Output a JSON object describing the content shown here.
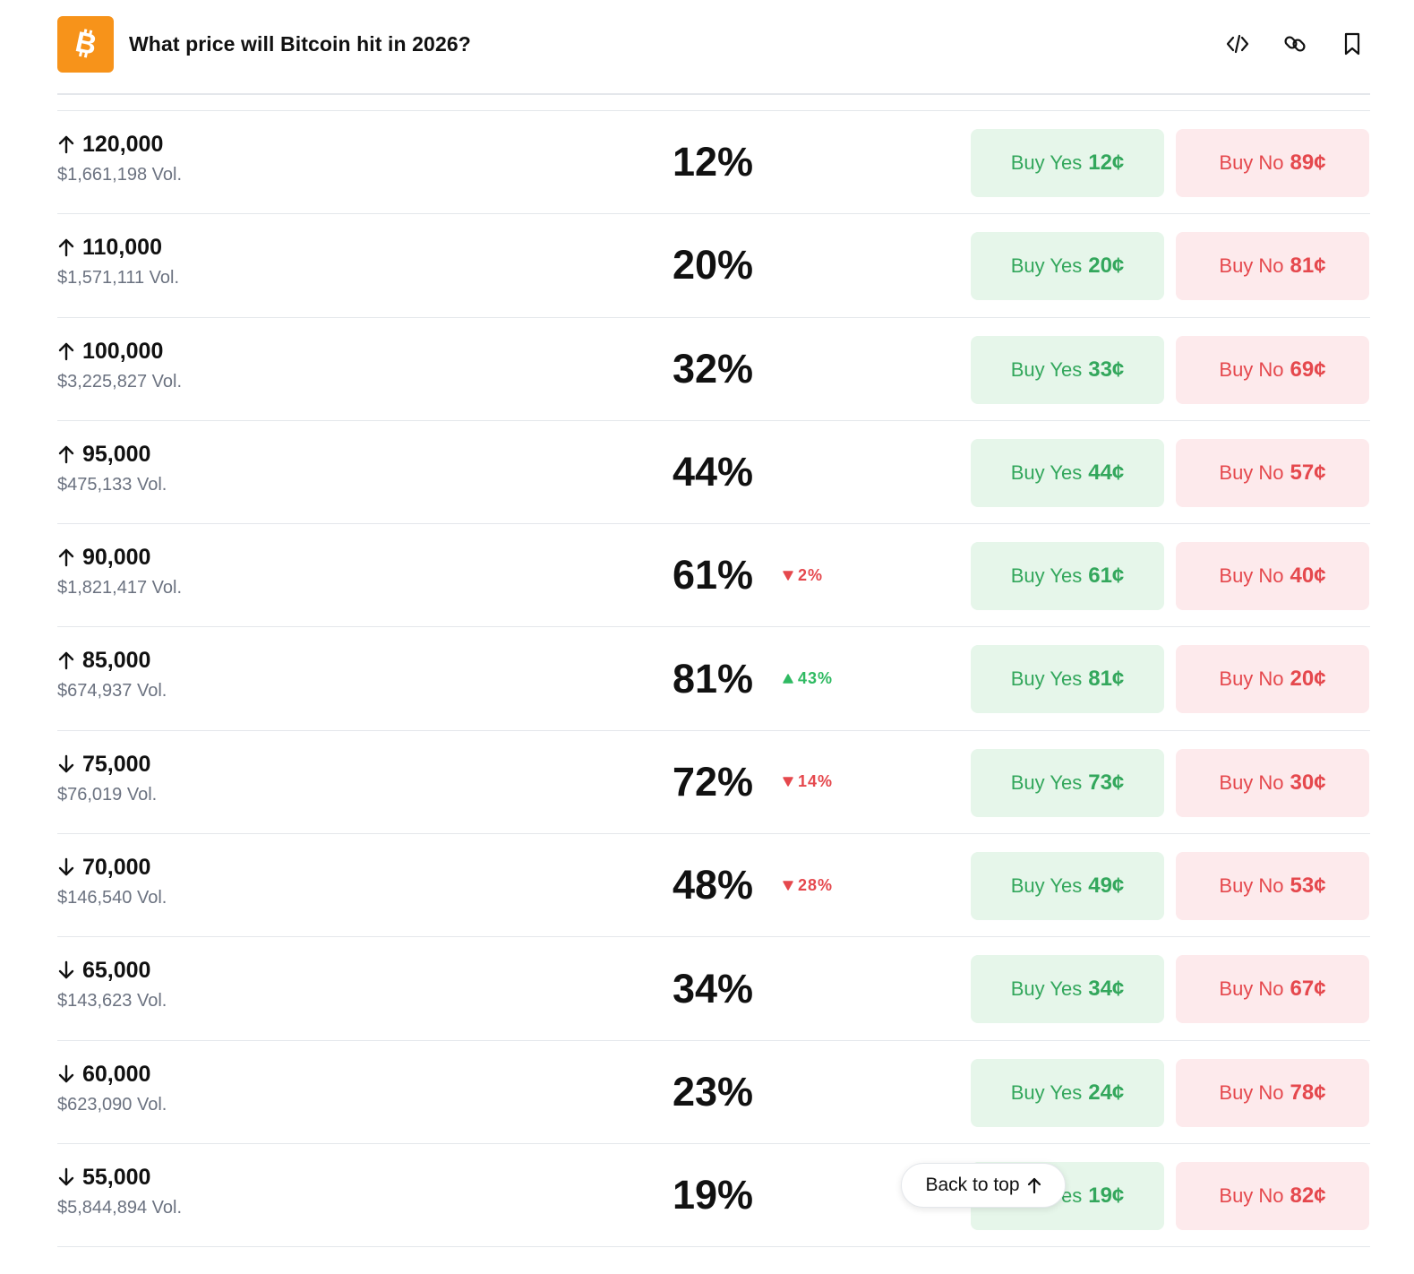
{
  "header": {
    "title": "What price will Bitcoin hit in 2026?",
    "logo_icon": "bitcoin-icon",
    "logo_color": "#f7931a",
    "actions": [
      {
        "name": "embed-button",
        "icon": "code-icon"
      },
      {
        "name": "copy-link-button",
        "icon": "link-icon"
      },
      {
        "name": "bookmark-button",
        "icon": "bookmark-icon"
      }
    ]
  },
  "colors": {
    "yes_text": "#33a75c",
    "yes_bg": "#e6f6ea",
    "no_text": "#e5484d",
    "no_bg": "#fdeaec"
  },
  "labels": {
    "buy_yes": "Buy Yes",
    "buy_no": "Buy No"
  },
  "markets": [
    {
      "direction": "up",
      "level": "120,000",
      "volume": "$1,661,198 Vol.",
      "chance": "12%",
      "delta": null,
      "yes_price": "12¢",
      "no_price": "89¢"
    },
    {
      "direction": "up",
      "level": "110,000",
      "volume": "$1,571,111 Vol.",
      "chance": "20%",
      "delta": null,
      "yes_price": "20¢",
      "no_price": "81¢"
    },
    {
      "direction": "up",
      "level": "100,000",
      "volume": "$3,225,827 Vol.",
      "chance": "32%",
      "delta": null,
      "yes_price": "33¢",
      "no_price": "69¢"
    },
    {
      "direction": "up",
      "level": "95,000",
      "volume": "$475,133 Vol.",
      "chance": "44%",
      "delta": null,
      "yes_price": "44¢",
      "no_price": "57¢"
    },
    {
      "direction": "up",
      "level": "90,000",
      "volume": "$1,821,417 Vol.",
      "chance": "61%",
      "delta": {
        "dir": "down",
        "value": "2%"
      },
      "yes_price": "61¢",
      "no_price": "40¢"
    },
    {
      "direction": "up",
      "level": "85,000",
      "volume": "$674,937 Vol.",
      "chance": "81%",
      "delta": {
        "dir": "up",
        "value": "43%"
      },
      "yes_price": "81¢",
      "no_price": "20¢"
    },
    {
      "direction": "down",
      "level": "75,000",
      "volume": "$76,019 Vol.",
      "chance": "72%",
      "delta": {
        "dir": "down",
        "value": "14%"
      },
      "yes_price": "73¢",
      "no_price": "30¢"
    },
    {
      "direction": "down",
      "level": "70,000",
      "volume": "$146,540 Vol.",
      "chance": "48%",
      "delta": {
        "dir": "down",
        "value": "28%"
      },
      "yes_price": "49¢",
      "no_price": "53¢"
    },
    {
      "direction": "down",
      "level": "65,000",
      "volume": "$143,623 Vol.",
      "chance": "34%",
      "delta": null,
      "yes_price": "34¢",
      "no_price": "67¢"
    },
    {
      "direction": "down",
      "level": "60,000",
      "volume": "$623,090 Vol.",
      "chance": "23%",
      "delta": null,
      "yes_price": "24¢",
      "no_price": "78¢"
    },
    {
      "direction": "down",
      "level": "55,000",
      "volume": "$5,844,894 Vol.",
      "chance": "19%",
      "delta": null,
      "yes_price": "19¢",
      "no_price": "82¢"
    }
  ],
  "back_to_top": {
    "label": "Back to top",
    "icon": "arrow-up-icon"
  }
}
